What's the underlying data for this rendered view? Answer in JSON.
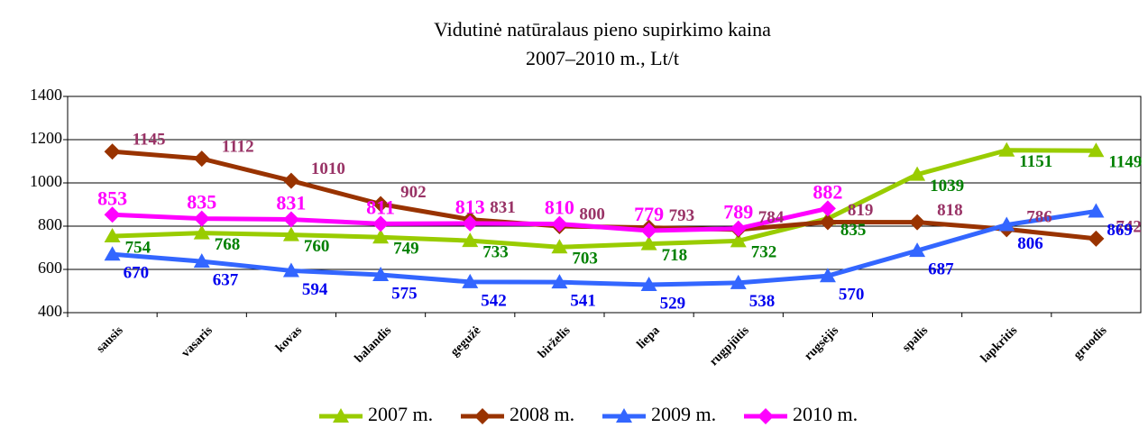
{
  "chart_data": {
    "type": "line",
    "title": "Vidutinė natūralaus pieno supirkimo kaina",
    "subtitle": "2007–2010 m., Lt/t",
    "categories": [
      "sausis",
      "vasaris",
      "kovas",
      "balandis",
      "gegužė",
      "birželis",
      "liepa",
      "rugpjūtis",
      "rugsėjis",
      "spalis",
      "lapkritis",
      "gruodis"
    ],
    "series": [
      {
        "name": "2007 m.",
        "color": "#99cc00",
        "label_color": "#008000",
        "marker": "triangle",
        "values": [
          754,
          768,
          760,
          749,
          733,
          703,
          718,
          732,
          835,
          1039,
          1151,
          1149
        ]
      },
      {
        "name": "2008 m.",
        "color": "#993300",
        "label_color": "#993366",
        "marker": "diamond",
        "values": [
          1145,
          1112,
          1010,
          902,
          831,
          800,
          793,
          784,
          819,
          818,
          786,
          742
        ]
      },
      {
        "name": "2009 m.",
        "color": "#3366ff",
        "label_color": "#0000ee",
        "marker": "triangle",
        "values": [
          670,
          637,
          594,
          575,
          542,
          541,
          529,
          538,
          570,
          687,
          806,
          869
        ]
      },
      {
        "name": "2010 m.",
        "color": "#ff00ff",
        "label_color": "#ff00ff",
        "marker": "diamond",
        "values": [
          853,
          835,
          831,
          811,
          813,
          810,
          779,
          789,
          882,
          null,
          null,
          null
        ]
      }
    ],
    "ylim": [
      400,
      1400
    ],
    "yticks": [
      400,
      600,
      800,
      1000,
      1200,
      1400
    ],
    "grid": true,
    "legend": "bottom"
  }
}
